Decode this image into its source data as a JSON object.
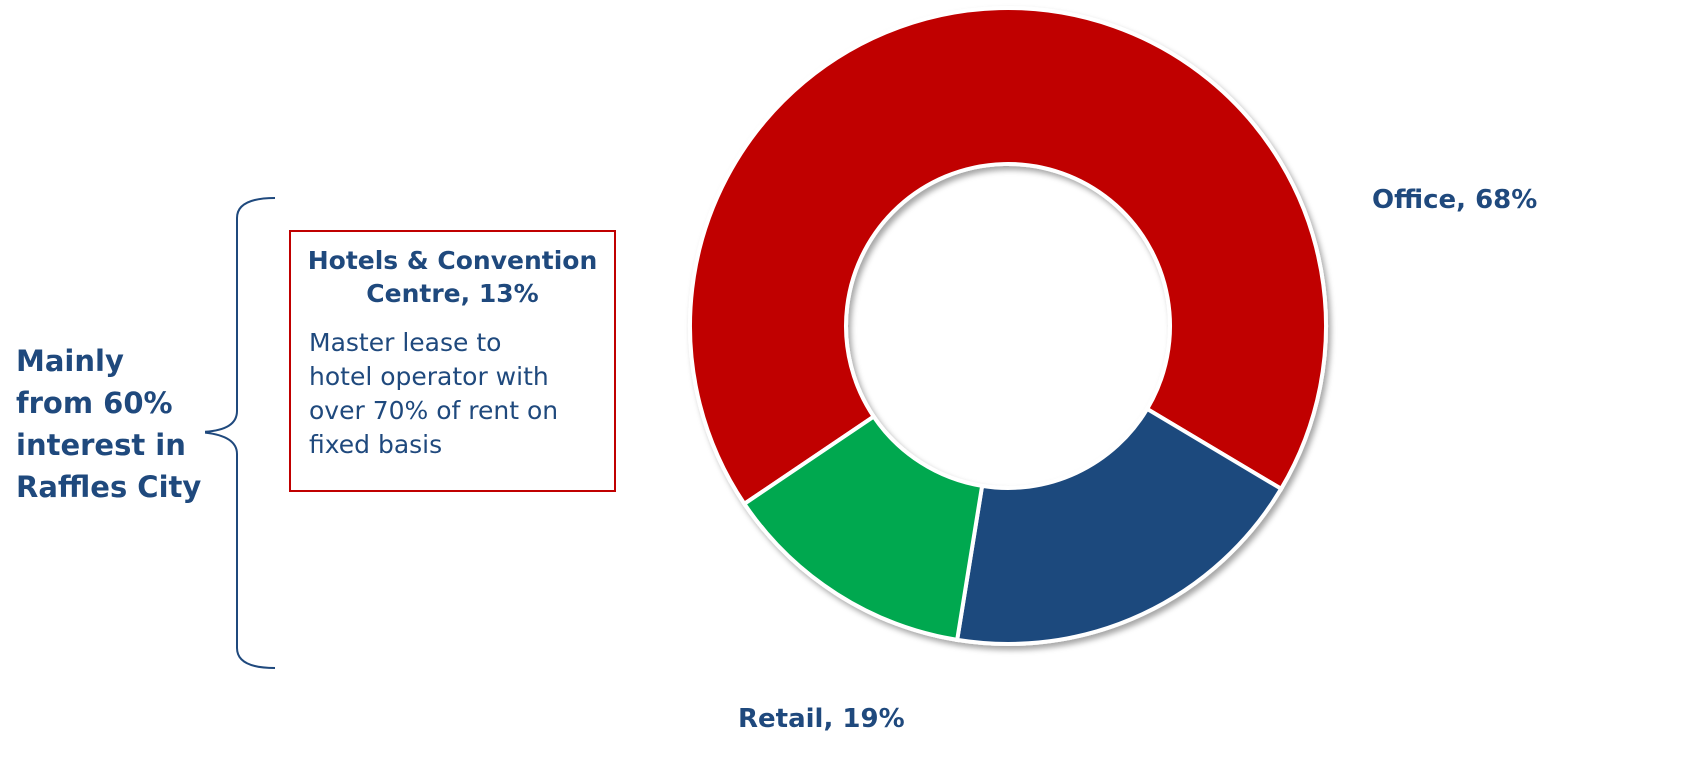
{
  "left_note": {
    "lines": [
      "Mainly",
      "from 60%",
      "interest in",
      "Raffles City"
    ]
  },
  "callout": {
    "title_lines": [
      "Hotels & Convention",
      "Centre, 13%"
    ],
    "body_lines": [
      "Master lease to",
      "hotel operator with",
      "over 70% of rent on",
      "fixed basis"
    ]
  },
  "chart_data": {
    "type": "pie",
    "donut": true,
    "slices": [
      {
        "name": "Office",
        "value": 68,
        "label": "Office, 68%",
        "color": "#c00000"
      },
      {
        "name": "Retail",
        "value": 19,
        "label": "Retail, 19%",
        "color": "#1f497d"
      },
      {
        "name": "Hotels & Convention Centre",
        "value": 13,
        "label": "Hotels & Convention Centre, 13%",
        "color": "#00a84f"
      }
    ],
    "legend": "none"
  },
  "colors": {
    "accent": "#c00000",
    "text": "#1f497d",
    "green": "#00a84f"
  }
}
